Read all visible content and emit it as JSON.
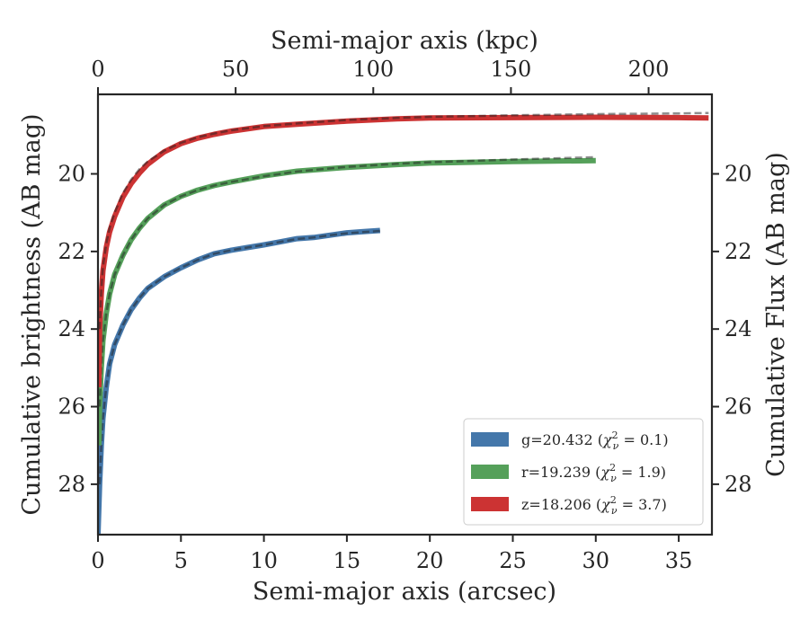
{
  "chart_data": {
    "type": "line",
    "xlabel": "Semi-major axis (arcsec)",
    "x2label": "Semi-major axis (kpc)",
    "ylabel": "Cumulative brightness (AB mag)",
    "y2label": "Cumulative Flux (AB mag)",
    "xlim": [
      0,
      37
    ],
    "x2lim": [
      0,
      223
    ],
    "ylim": [
      29.3,
      17.95
    ],
    "y_inverted": true,
    "xticks": [
      0,
      5,
      10,
      15,
      20,
      25,
      30,
      35
    ],
    "xtick_labels": [
      "0",
      "5",
      "10",
      "15",
      "20",
      "25",
      "30",
      "35"
    ],
    "x2ticks": [
      0,
      50,
      100,
      150,
      200
    ],
    "x2tick_labels": [
      "0",
      "50",
      "100",
      "150",
      "200"
    ],
    "yticks": [
      20,
      22,
      24,
      26,
      28
    ],
    "ytick_labels": [
      "20",
      "22",
      "24",
      "26",
      "28"
    ],
    "grid": false,
    "legend_position": "lower-right",
    "series": [
      {
        "name": "g=20.432 (χ²ν = 0.1)",
        "legend_main": "g=20.432 (",
        "legend_chi": "χ",
        "legend_sub": "ν",
        "legend_sup": "2",
        "legend_tail": " = 0.1)",
        "color": "#4477aa",
        "x": [
          0.0,
          0.1,
          0.2,
          0.3,
          0.5,
          0.7,
          1.0,
          1.5,
          2.0,
          2.5,
          3.0,
          4.0,
          5.0,
          6.0,
          7.0,
          8.0,
          9.0,
          10.0,
          11.0,
          12.0,
          13.0,
          14.0,
          15.0,
          16.0,
          17.0
        ],
        "y": [
          29.3,
          28.0,
          27.0,
          26.3,
          25.5,
          24.9,
          24.4,
          23.9,
          23.5,
          23.2,
          22.95,
          22.65,
          22.42,
          22.22,
          22.06,
          21.97,
          21.9,
          21.83,
          21.75,
          21.67,
          21.64,
          21.58,
          21.52,
          21.49,
          21.46
        ],
        "model": [
          28.0,
          27.0,
          26.3,
          25.5,
          24.9,
          24.4,
          23.9,
          23.5,
          23.2,
          22.95,
          22.65,
          22.42,
          22.22,
          22.06,
          21.97,
          21.9,
          21.83,
          21.75,
          21.68,
          21.64,
          21.58,
          21.53,
          21.5,
          21.47
        ]
      },
      {
        "name": "r=19.239 (χ²ν = 1.9)",
        "legend_main": "r=19.239 (",
        "legend_chi": "χ",
        "legend_sub": "ν",
        "legend_sup": "2",
        "legend_tail": " = 1.9)",
        "color": "#55a05a",
        "x": [
          0.05,
          0.1,
          0.2,
          0.3,
          0.5,
          0.7,
          1.0,
          1.5,
          2.0,
          2.5,
          3.0,
          4.0,
          5.0,
          6.0,
          7.0,
          8.0,
          10.0,
          12.0,
          15.0,
          18.0,
          20.0,
          25.0,
          30.0
        ],
        "y": [
          27.0,
          26.0,
          25.0,
          24.3,
          23.6,
          23.1,
          22.6,
          22.1,
          21.7,
          21.4,
          21.15,
          20.8,
          20.58,
          20.42,
          20.3,
          20.21,
          20.05,
          19.93,
          19.83,
          19.76,
          19.72,
          19.68,
          19.66
        ],
        "model": [
          26.0,
          25.0,
          24.3,
          23.6,
          23.1,
          22.6,
          22.1,
          21.7,
          21.4,
          21.15,
          20.8,
          20.58,
          20.42,
          20.3,
          20.21,
          20.06,
          19.94,
          19.82,
          19.74,
          19.7,
          19.63,
          19.57
        ]
      },
      {
        "name": "z=18.206 (χ²ν = 3.7)",
        "legend_main": "z=18.206 (",
        "legend_chi": "χ",
        "legend_sub": "ν",
        "legend_sup": "2",
        "legend_tail": " = 3.7)",
        "color": "#cc3333",
        "x": [
          0.05,
          0.1,
          0.2,
          0.3,
          0.5,
          0.7,
          1.0,
          1.5,
          2.0,
          2.5,
          3.0,
          4.0,
          5.0,
          6.0,
          7.0,
          8.0,
          10.0,
          12.0,
          15.0,
          18.0,
          20.0,
          25.0,
          30.0,
          35.0,
          36.8
        ],
        "y": [
          25.5,
          24.0,
          23.1,
          22.5,
          21.9,
          21.5,
          21.1,
          20.6,
          20.25,
          19.98,
          19.75,
          19.43,
          19.22,
          19.08,
          18.98,
          18.9,
          18.78,
          18.72,
          18.64,
          18.58,
          18.56,
          18.55,
          18.54,
          18.55,
          18.56
        ],
        "model": [
          24.0,
          23.0,
          22.4,
          21.8,
          21.4,
          21.0,
          20.5,
          20.15,
          19.88,
          19.68,
          19.4,
          19.2,
          19.06,
          18.96,
          18.88,
          18.77,
          18.7,
          18.61,
          18.56,
          18.53,
          18.49,
          18.46,
          18.44,
          18.43
        ]
      }
    ]
  }
}
